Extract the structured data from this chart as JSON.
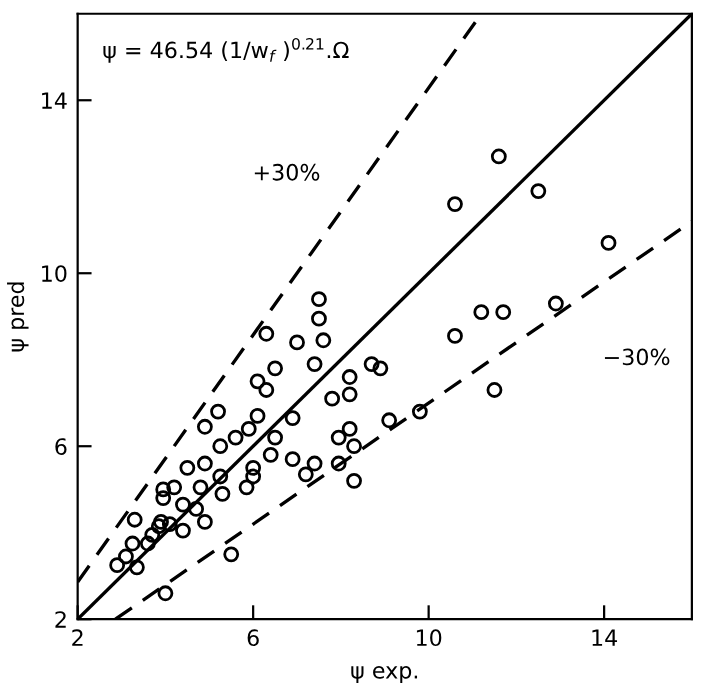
{
  "chart_data": {
    "type": "scatter",
    "xlabel": "ψ exp.",
    "ylabel": "ψ pred",
    "xlim": [
      2,
      16
    ],
    "ylim": [
      2,
      16
    ],
    "xticks": [
      2,
      6,
      10,
      14
    ],
    "yticks": [
      2,
      6,
      10,
      14
    ],
    "grid": false,
    "legend": false,
    "annotations": [
      "ψ = 46.54 (1/w$_{f}$ )$^{0.21}$.Ω",
      "+30%",
      "−30%"
    ],
    "series": [
      {
        "color": "#000000",
        "marker": "circle",
        "x": [
          11.6,
          10.6,
          12.5,
          14.1,
          7.5,
          7.5,
          10.6,
          11.2,
          11.7,
          12.9,
          11.5,
          6.3,
          7.0,
          7.6,
          7.4,
          8.7,
          8.9,
          8.2,
          8.2,
          7.8,
          6.5,
          6.1,
          6.3,
          6.9,
          8.2,
          7.95,
          9.1,
          9.8,
          5.2,
          4.9,
          6.1,
          5.9,
          5.6,
          6.5,
          5.25,
          8.3,
          4.9,
          4.5,
          6.0,
          6.0,
          6.4,
          6.9,
          7.4,
          7.95,
          7.2,
          8.3,
          5.25,
          4.8,
          5.3,
          5.85,
          4.2,
          3.95,
          3.95,
          4.4,
          4.7,
          3.3,
          3.9,
          4.1,
          3.85,
          4.4,
          4.9,
          3.7,
          3.25,
          3.6,
          3.1,
          2.9,
          3.35,
          5.5,
          4.0
        ],
        "values": [
          12.7,
          11.6,
          11.9,
          10.7,
          9.4,
          8.95,
          8.55,
          9.1,
          9.1,
          9.3,
          7.3,
          8.6,
          8.4,
          8.45,
          7.9,
          7.9,
          7.8,
          7.6,
          7.2,
          7.1,
          7.8,
          7.5,
          7.3,
          6.65,
          6.4,
          6.2,
          6.6,
          6.8,
          6.8,
          6.45,
          6.7,
          6.4,
          6.2,
          6.2,
          6.0,
          6.0,
          5.6,
          5.5,
          5.5,
          5.3,
          5.8,
          5.7,
          5.6,
          5.6,
          5.35,
          5.2,
          5.3,
          5.05,
          4.9,
          5.05,
          5.05,
          5.0,
          4.8,
          4.65,
          4.55,
          4.3,
          4.25,
          4.2,
          4.15,
          4.05,
          4.25,
          3.95,
          3.75,
          3.75,
          3.45,
          3.25,
          3.2,
          3.5,
          2.6
        ]
      },
      {
        "type": "line",
        "color": "#000000",
        "line_style": "solid",
        "marker": "none",
        "x": [
          2,
          16
        ],
        "values": [
          2,
          16
        ]
      },
      {
        "type": "line",
        "color": "#000000",
        "line_style": "dashed",
        "marker": "none",
        "x": [
          2,
          11.2
        ],
        "values": [
          2.86,
          16
        ]
      },
      {
        "type": "line",
        "color": "#000000",
        "line_style": "dashed",
        "marker": "none",
        "x": [
          2.86,
          16
        ],
        "values": [
          2,
          11.2
        ]
      }
    ]
  }
}
